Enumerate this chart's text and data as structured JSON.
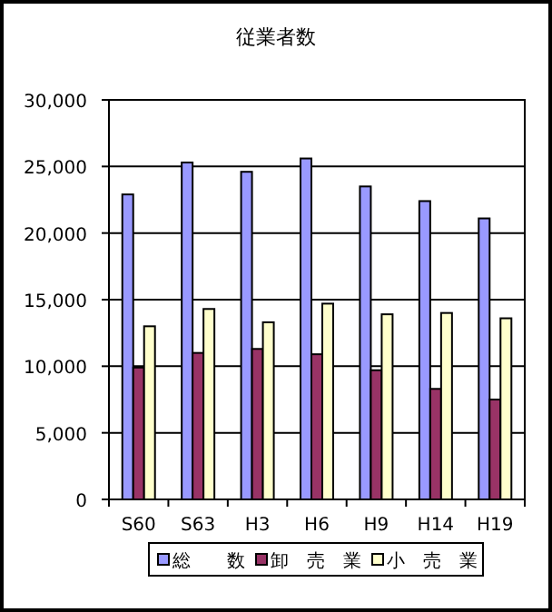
{
  "chart_data": {
    "type": "bar",
    "title": "従業者数",
    "categories": [
      "S60",
      "S63",
      "H3",
      "H6",
      "H9",
      "H14",
      "H19"
    ],
    "series": [
      {
        "name": "総　　数",
        "color": "#9999ff",
        "values": [
          22900,
          25300,
          24600,
          25600,
          23500,
          22400,
          21100
        ]
      },
      {
        "name": "卸　売　業",
        "color": "#993366",
        "values": [
          9900,
          11000,
          11300,
          10900,
          9700,
          8300,
          7500
        ]
      },
      {
        "name": "小　売　業",
        "color": "#ffffcc",
        "values": [
          13000,
          14300,
          13300,
          14700,
          13900,
          14000,
          13600
        ]
      }
    ],
    "ylim": [
      0,
      30000
    ],
    "yticks": [
      {
        "value": 0,
        "label": "0"
      },
      {
        "value": 5000,
        "label": "5,000"
      },
      {
        "value": 10000,
        "label": "10,000"
      },
      {
        "value": 15000,
        "label": "15,000"
      },
      {
        "value": 20000,
        "label": "20,000"
      },
      {
        "value": 25000,
        "label": "25,000"
      },
      {
        "value": 30000,
        "label": "30,000"
      }
    ],
    "grid": "y",
    "legend": "bottom"
  }
}
